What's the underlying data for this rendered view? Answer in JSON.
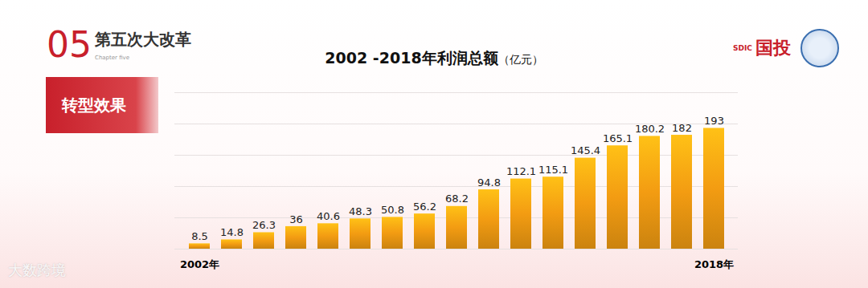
{
  "chart_data": {
    "type": "bar",
    "title": "2002 -2018年利润总额",
    "subtitle": "（亿元）",
    "categories": [
      "2002年",
      null,
      null,
      null,
      null,
      null,
      null,
      null,
      null,
      null,
      null,
      null,
      null,
      null,
      null,
      null,
      "2018年"
    ],
    "values": [
      8.5,
      14.8,
      26.3,
      36,
      40.6,
      48.3,
      50.8,
      56.2,
      68.2,
      94.8,
      112.1,
      115.1,
      145.4,
      165.1,
      180.2,
      182,
      193
    ],
    "color": "#f39c12",
    "ylim": [
      0,
      250
    ],
    "yticks": [
      0,
      50,
      100,
      150,
      200,
      250
    ],
    "grid": true,
    "data_labels": true,
    "tick_labels": "x"
  },
  "page": {
    "number": "05",
    "heading": "第五次大改革",
    "chapter": "Chapter five",
    "tag": "转型效果",
    "logo_small": "SDIC",
    "logo": "国投",
    "watermark": "大数跨境"
  }
}
